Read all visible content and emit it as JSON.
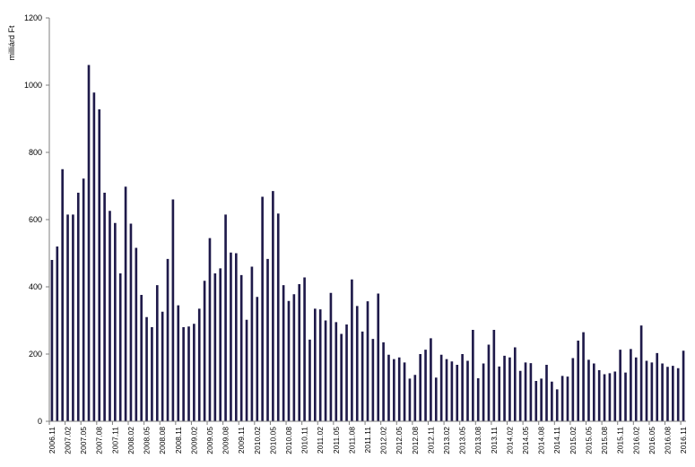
{
  "chart_data": {
    "type": "bar",
    "title": "",
    "xlabel": "",
    "ylabel": "milliárd Ft",
    "ylim": [
      0,
      1200
    ],
    "yticks": [
      "0",
      "200",
      "400",
      "600",
      "800",
      "1000",
      "1200"
    ],
    "grid": false,
    "legend": "none",
    "bar_color": "#1f1a4a",
    "categories": [
      "2006.11",
      "2006.12",
      "2007.01",
      "2007.02",
      "2007.03",
      "2007.04",
      "2007.05",
      "2007.06",
      "2007.07",
      "2007.08",
      "2007.09",
      "2007.10",
      "2007.11",
      "2007.12",
      "2008.01",
      "2008.02",
      "2008.03",
      "2008.04",
      "2008.05",
      "2008.06",
      "2008.07",
      "2008.08",
      "2008.09",
      "2008.10",
      "2008.11",
      "2008.12",
      "2009.01",
      "2009.02",
      "2009.03",
      "2009.04",
      "2009.05",
      "2009.06",
      "2009.07",
      "2009.08",
      "2009.09",
      "2009.10",
      "2009.11",
      "2009.12",
      "2010.01",
      "2010.02",
      "2010.03",
      "2010.04",
      "2010.05",
      "2010.06",
      "2010.07",
      "2010.08",
      "2010.09",
      "2010.10",
      "2010.11",
      "2010.12",
      "2011.01",
      "2011.02",
      "2011.03",
      "2011.04",
      "2011.05",
      "2011.06",
      "2011.07",
      "2011.08",
      "2011.09",
      "2011.10",
      "2011.11",
      "2011.12",
      "2012.01",
      "2012.02",
      "2012.03",
      "2012.04",
      "2012.05",
      "2012.06",
      "2012.07",
      "2012.08",
      "2012.09",
      "2012.10",
      "2012.11",
      "2012.12",
      "2013.01",
      "2013.02",
      "2013.03",
      "2013.04",
      "2013.05",
      "2013.06",
      "2013.07",
      "2013.08",
      "2013.09",
      "2013.10",
      "2013.11",
      "2013.12",
      "2014.01",
      "2014.02",
      "2014.03",
      "2014.04",
      "2014.05",
      "2014.06",
      "2014.07",
      "2014.08",
      "2014.09",
      "2014.10",
      "2014.11",
      "2014.12",
      "2015.01",
      "2015.02",
      "2015.03",
      "2015.04",
      "2015.05",
      "2015.06",
      "2015.07",
      "2015.08",
      "2015.09",
      "2015.10",
      "2015.11",
      "2015.12",
      "2016.01",
      "2016.02",
      "2016.03",
      "2016.04",
      "2016.05",
      "2016.06",
      "2016.07",
      "2016.08",
      "2016.09",
      "2016.10",
      "2016.11"
    ],
    "tick_labels_shown": [
      "2006.11",
      "2007.02",
      "2007.05",
      "2007.08",
      "2007.11",
      "2008.02",
      "2008.05",
      "2008.08",
      "2008.11",
      "2009.02",
      "2009.05",
      "2009.08",
      "2009.11",
      "2010.02",
      "2010.05",
      "2010.08",
      "2010.11",
      "2011.02",
      "2011.05",
      "2011.08",
      "2011.11",
      "2012.02",
      "2012.05",
      "2012.08",
      "2012.11",
      "2013.02",
      "2013.05",
      "2013.08",
      "2013.11",
      "2014.02",
      "2014.05",
      "2014.08",
      "2014.11",
      "2015.02",
      "2015.05",
      "2015.08",
      "2015.11",
      "2016.02",
      "2016.05",
      "2016.08",
      "2016.11"
    ],
    "values": [
      480,
      520,
      750,
      615,
      615,
      680,
      722,
      1060,
      978,
      928,
      680,
      626,
      590,
      440,
      698,
      588,
      516,
      376,
      310,
      280,
      405,
      326,
      483,
      660,
      345,
      280,
      282,
      290,
      335,
      418,
      545,
      440,
      455,
      615,
      502,
      500,
      435,
      302,
      460,
      370,
      668,
      483,
      685,
      618,
      405,
      358,
      378,
      408,
      428,
      243,
      335,
      333,
      300,
      382,
      295,
      260,
      288,
      422,
      343,
      267,
      357,
      245,
      380,
      235,
      198,
      185,
      190,
      175,
      127,
      138,
      200,
      213,
      247,
      130,
      198,
      185,
      178,
      168,
      200,
      180,
      272,
      128,
      172,
      228,
      272,
      163,
      195,
      190,
      220,
      150,
      175,
      173,
      120,
      127,
      168,
      118,
      95,
      135,
      133,
      188,
      240,
      265,
      183,
      172,
      152,
      140,
      143,
      148,
      213,
      145,
      215,
      190,
      285,
      180,
      175,
      203,
      172,
      162,
      165,
      158,
      210
    ]
  }
}
